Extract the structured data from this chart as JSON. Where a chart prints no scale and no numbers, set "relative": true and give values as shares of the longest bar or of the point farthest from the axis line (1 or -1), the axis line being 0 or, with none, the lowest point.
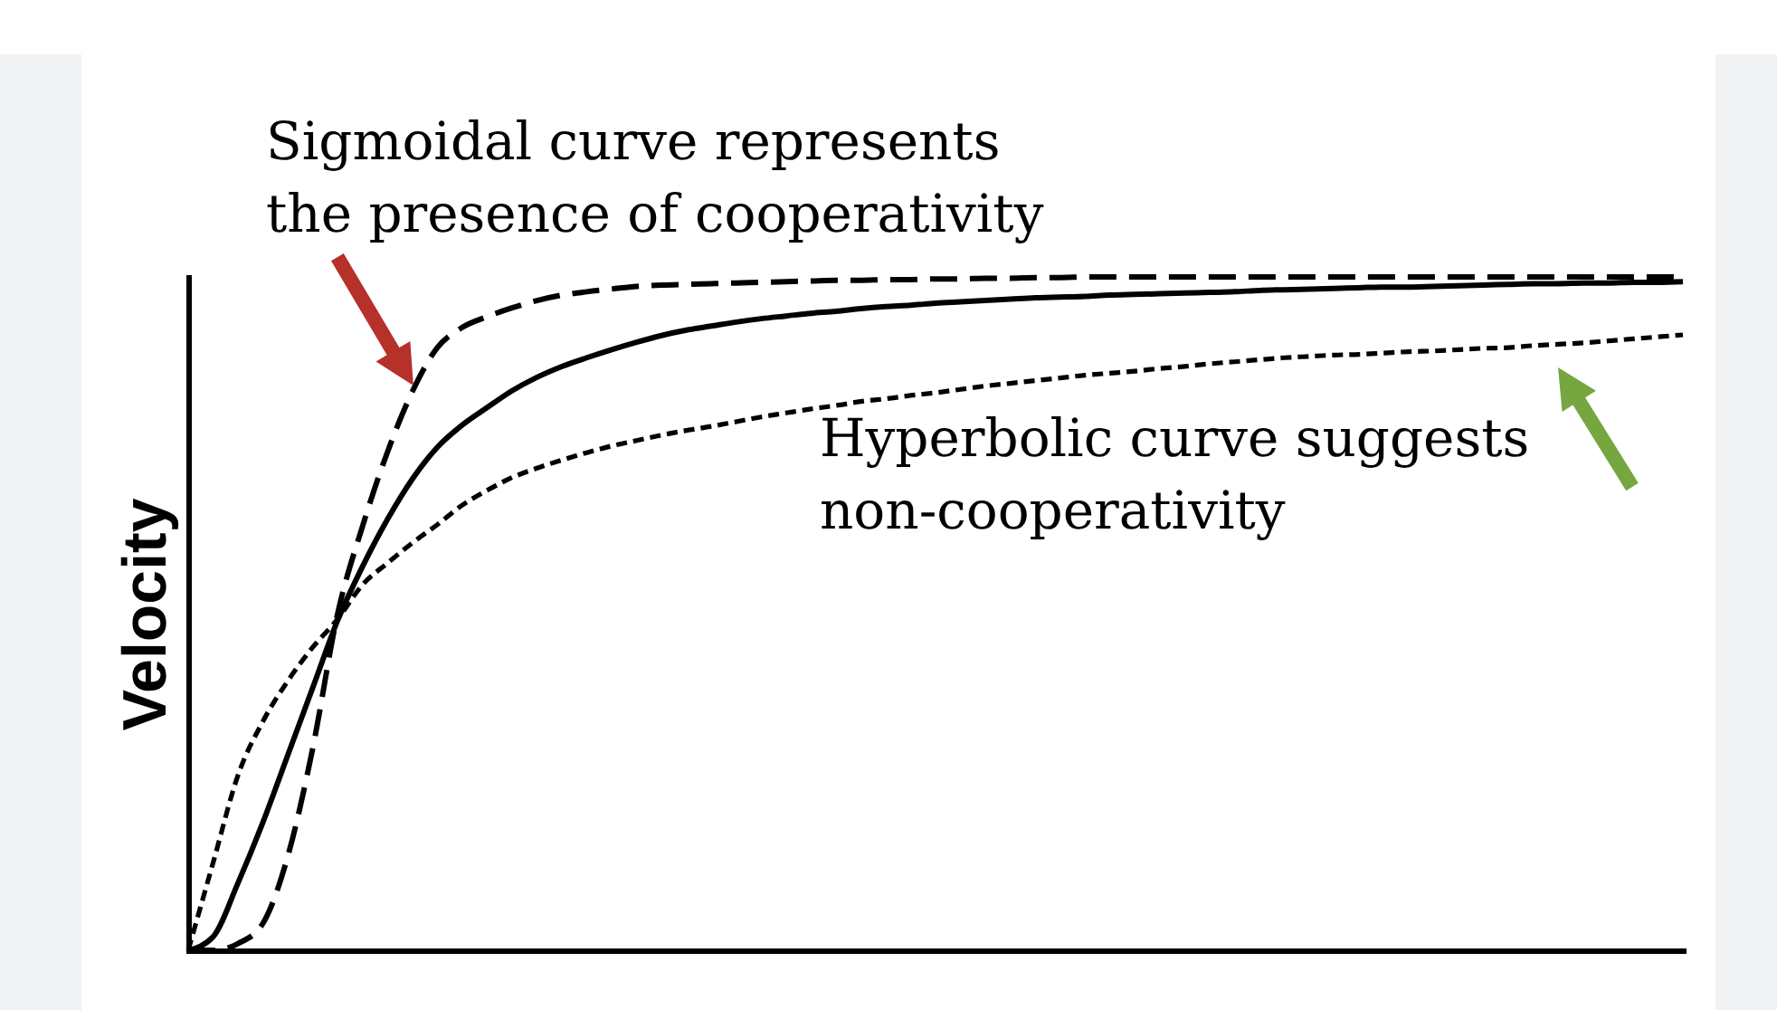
{
  "chart_data": {
    "type": "line",
    "relative": true,
    "ylabel": "Velocity",
    "annotations": [
      "Sigmoidal curve represents\nthe presence of cooperativity",
      "Hyperbolic curve suggests\nnon-cooperativity"
    ],
    "categories": [
      null,
      null,
      null,
      null,
      null,
      null,
      null,
      null,
      null,
      null,
      null,
      null,
      null,
      null,
      null,
      null,
      null,
      null,
      null,
      null,
      null,
      null,
      null,
      null,
      null,
      null,
      null,
      null,
      null,
      null,
      null,
      null,
      null,
      null,
      null,
      null,
      null,
      null,
      null,
      null,
      null,
      null,
      null,
      null,
      null,
      null,
      null,
      null,
      null,
      null,
      null,
      null,
      null,
      null,
      null,
      null,
      null,
      null,
      null,
      null,
      null
    ],
    "series": [
      {
        "color": "#000000",
        "line_style": "dashed",
        "values": [
          0,
          0,
          0.01,
          0.04,
          0.14,
          0.3,
          0.5,
          0.63,
          0.74,
          0.83,
          0.895,
          0.925,
          0.941,
          0.954,
          0.965,
          0.973,
          0.978,
          0.982,
          0.986,
          0.988,
          0.989,
          0.99,
          0.991,
          0.992,
          0.993,
          0.994,
          0.995,
          0.995,
          0.996,
          0.996,
          0.997,
          0.997,
          0.998,
          0.998,
          0.999,
          0.999,
          1,
          1,
          1,
          1,
          1,
          1,
          1,
          1,
          1,
          1,
          1,
          1,
          1,
          1,
          1,
          1,
          1,
          1,
          1,
          1,
          1,
          1,
          1,
          1,
          1
        ]
      },
      {
        "color": "#000000",
        "line_style": "solid",
        "values": [
          0,
          0.02,
          0.1,
          0.19,
          0.29,
          0.39,
          0.49,
          0.57,
          0.64,
          0.7,
          0.747,
          0.78,
          0.806,
          0.831,
          0.851,
          0.867,
          0.88,
          0.892,
          0.903,
          0.913,
          0.921,
          0.927,
          0.933,
          0.938,
          0.942,
          0.946,
          0.949,
          0.953,
          0.956,
          0.958,
          0.961,
          0.963,
          0.965,
          0.967,
          0.969,
          0.97,
          0.971,
          0.973,
          0.974,
          0.975,
          0.976,
          0.977,
          0.978,
          0.98,
          0.981,
          0.982,
          0.983,
          0.984,
          0.985,
          0.985,
          0.986,
          0.987,
          0.988,
          0.989,
          0.99,
          0.99,
          0.991,
          0.991,
          0.992,
          0.992,
          0.993
        ]
      },
      {
        "color": "#000000",
        "line_style": "dotted",
        "values": [
          0,
          0.13,
          0.26,
          0.34,
          0.4,
          0.45,
          0.492,
          0.543,
          0.575,
          0.605,
          0.632,
          0.661,
          0.683,
          0.702,
          0.716,
          0.728,
          0.739,
          0.749,
          0.757,
          0.765,
          0.772,
          0.778,
          0.785,
          0.792,
          0.798,
          0.804,
          0.809,
          0.815,
          0.819,
          0.824,
          0.828,
          0.833,
          0.838,
          0.842,
          0.846,
          0.85,
          0.854,
          0.857,
          0.86,
          0.864,
          0.867,
          0.871,
          0.874,
          0.877,
          0.88,
          0.882,
          0.884,
          0.885,
          0.887,
          0.889,
          0.89,
          0.892,
          0.894,
          0.895,
          0.898,
          0.9,
          0.902,
          0.905,
          0.908,
          0.911,
          0.914
        ]
      }
    ]
  }
}
